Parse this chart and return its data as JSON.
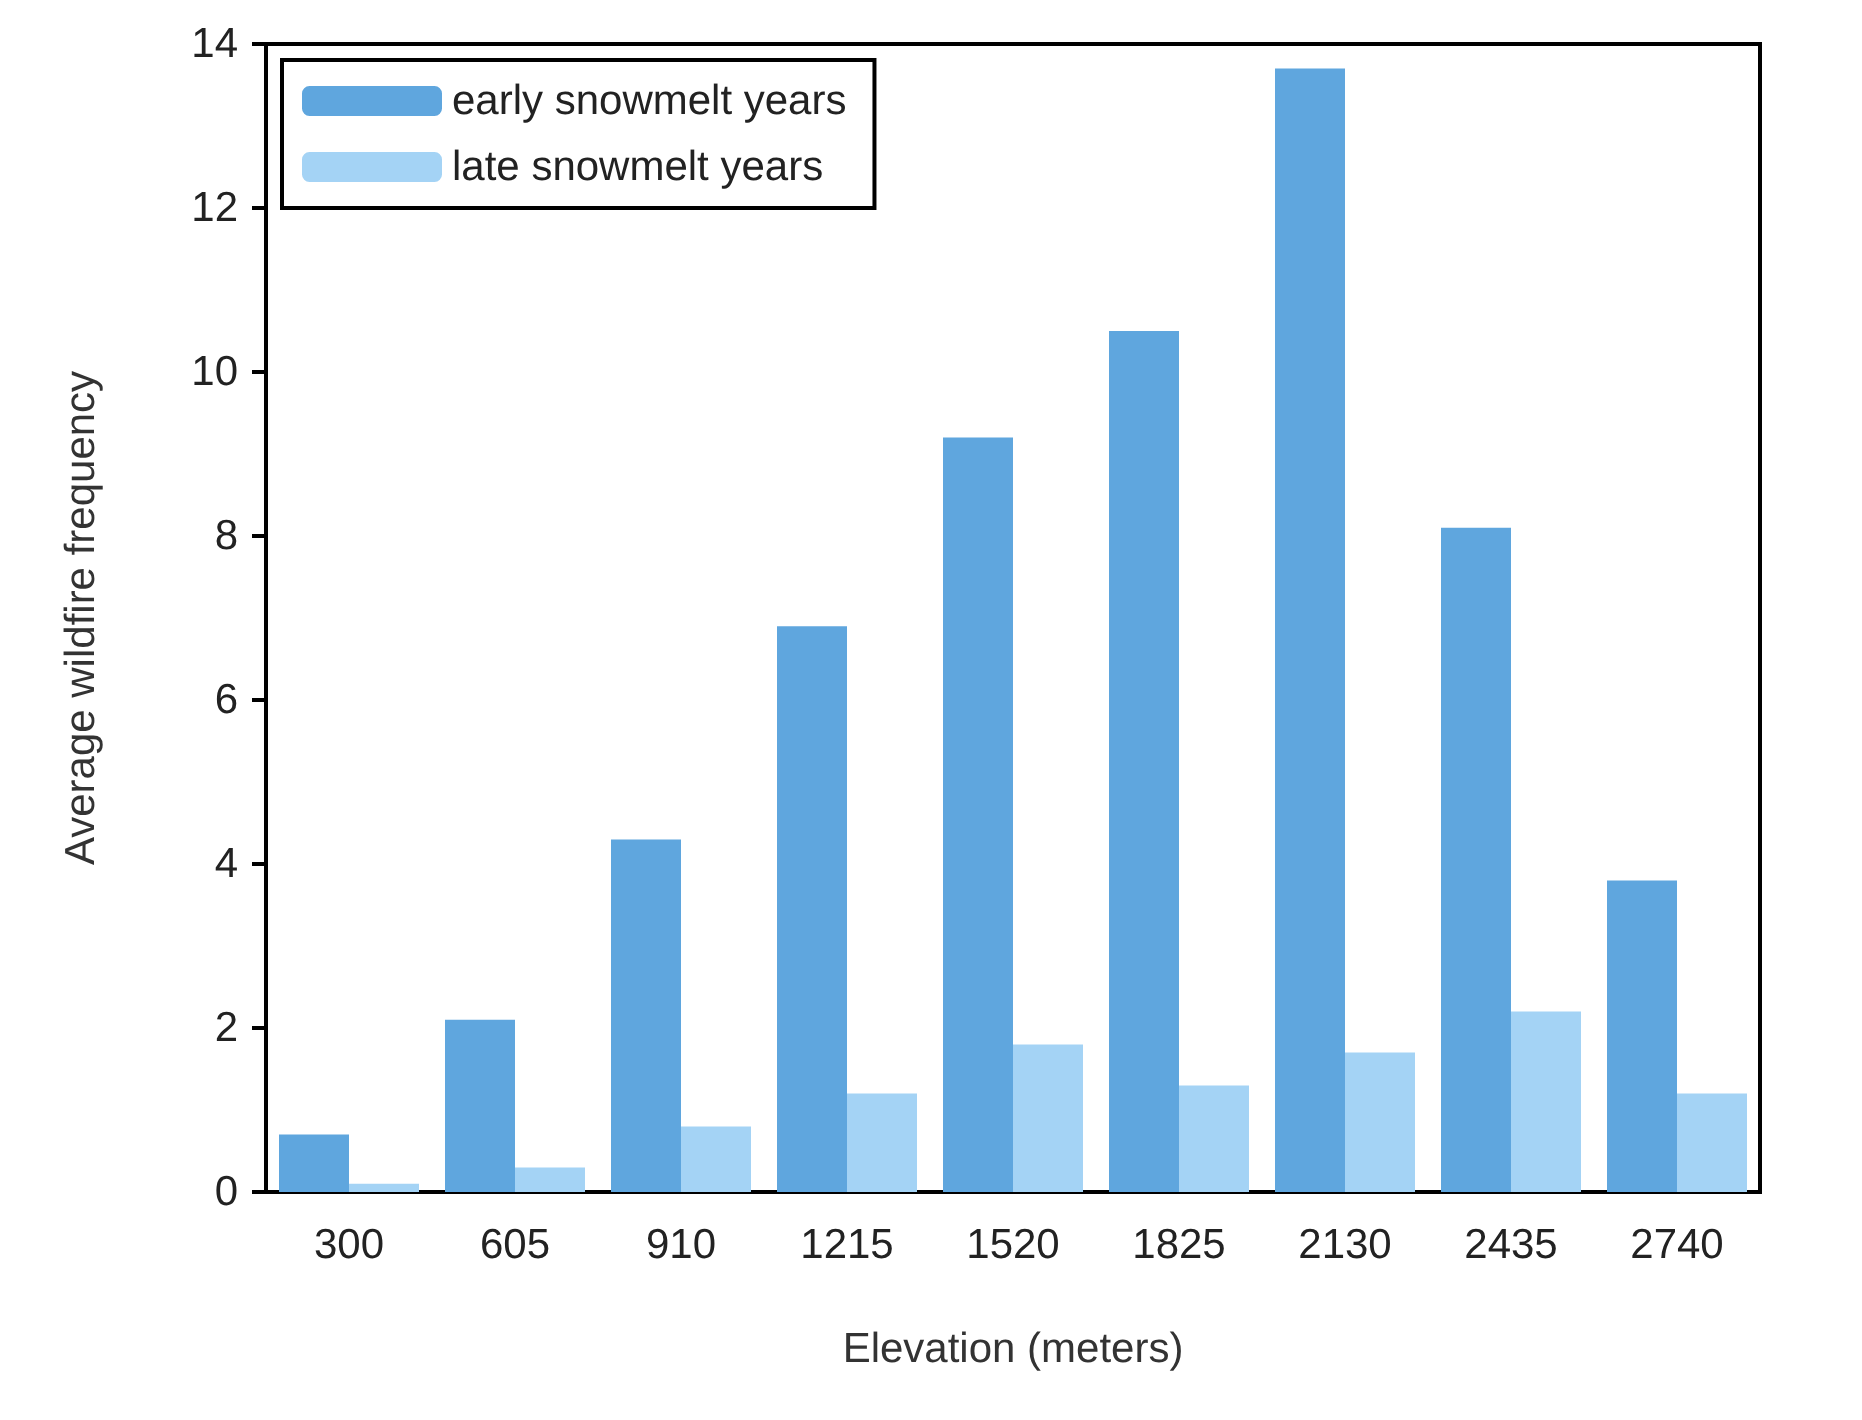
{
  "chart_data": {
    "type": "bar",
    "xlabel": "Elevation (meters)",
    "ylabel": "Average wildfire frequency",
    "categories": [
      "300",
      "605",
      "910",
      "1215",
      "1520",
      "1825",
      "2130",
      "2435",
      "2740"
    ],
    "series": [
      {
        "name": "early snowmelt years",
        "color": "#5fa6de",
        "values": [
          0.7,
          2.1,
          4.3,
          6.9,
          9.2,
          10.5,
          13.7,
          8.1,
          3.8
        ]
      },
      {
        "name": "late snowmelt years",
        "color": "#a4d3f5",
        "values": [
          0.1,
          0.3,
          0.8,
          1.2,
          1.8,
          1.3,
          1.7,
          2.2,
          1.2
        ]
      }
    ],
    "ylim": [
      0,
      14
    ],
    "yticks": [
      0,
      2,
      4,
      6,
      8,
      10,
      12,
      14
    ],
    "grid": false,
    "legend": "top left"
  }
}
